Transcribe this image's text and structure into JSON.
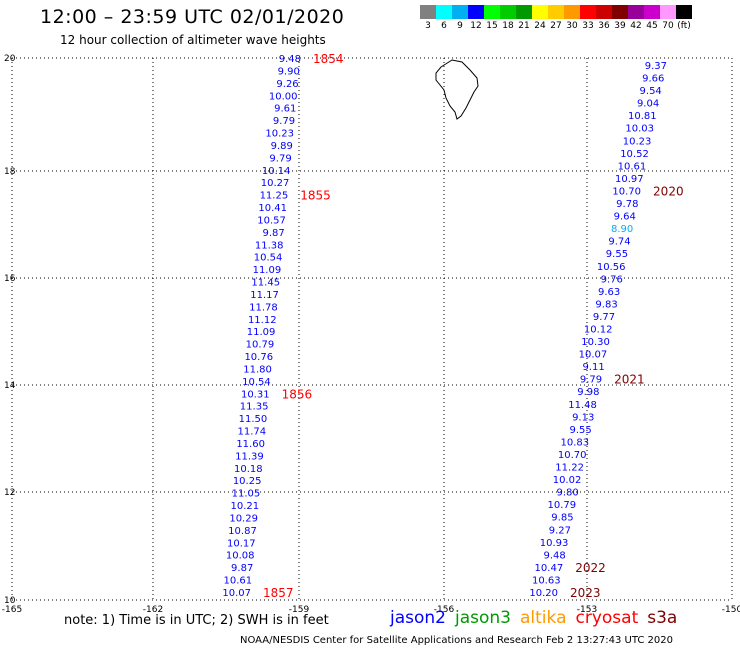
{
  "header": {
    "title": "12:00 – 23:59 UTC 02/01/2020",
    "subtitle": "12 hour collection of altimeter wave heights"
  },
  "legend": {
    "colors": [
      "#808080",
      "#00ffff",
      "#00b0f0",
      "#0000ff",
      "#00ff00",
      "#00cc00",
      "#009900",
      "#ffff00",
      "#ffcc00",
      "#ff9900",
      "#ff0000",
      "#cc0000",
      "#800000",
      "#990099",
      "#cc00cc",
      "#ff99ff",
      "#000000"
    ],
    "labels": [
      "3",
      "6",
      "9",
      "12",
      "15",
      "18",
      "21",
      "24",
      "27",
      "30",
      "33",
      "36",
      "39",
      "42",
      "45",
      "70",
      "(ft)"
    ]
  },
  "axes": {
    "lon_ticks": [
      "-165",
      "-162",
      "-159",
      "-156",
      "-153",
      "-150"
    ],
    "lat_ticks": [
      "10",
      "12",
      "14",
      "16",
      "18",
      "20"
    ]
  },
  "tracks": [
    {
      "values": [
        "9.48",
        "9.90",
        "9.26",
        "10.00",
        "9.61",
        "9.79",
        "10.23",
        "9.89",
        "9.79",
        "10.14",
        "10.27",
        "11.25",
        "10.41",
        "10.57",
        "9.87",
        "11.38",
        "10.54",
        "11.09",
        "11.45",
        "11.17",
        "11.78",
        "11.12",
        "11.09",
        "10.79",
        "10.76",
        "11.80",
        "10.54",
        "10.31",
        "11.35",
        "11.50",
        "11.74",
        "11.60",
        "11.39",
        "10.18",
        "10.25",
        "11.05",
        "10.21",
        "10.29",
        "10.87",
        "10.17",
        "10.08",
        "9.87",
        "10.61",
        "10.07"
      ],
      "times": [
        {
          "label": "1854",
          "after": 0
        },
        {
          "label": "1855",
          "after": 11
        },
        {
          "label": "1856",
          "after": 27
        },
        {
          "label": "1857",
          "after": 43
        }
      ]
    },
    {
      "values": [
        "9.37",
        "9.66",
        "9.54",
        "9.04",
        "10.81",
        "10.03",
        "10.23",
        "10.52",
        "10.61",
        "10.97",
        "10.70",
        "9.78",
        "9.64",
        "8.90",
        "9.74",
        "9.55",
        "10.56",
        "9.76",
        "9.63",
        "9.83",
        "9.77",
        "10.12",
        "10.30",
        "10.07",
        "9.11",
        "9.79",
        "9.98",
        "11.48",
        "9.13",
        "9.55",
        "10.83",
        "10.70",
        "11.22",
        "10.02",
        "9.80",
        "10.79",
        "9.85",
        "9.27",
        "10.93",
        "9.48",
        "10.47",
        "10.63",
        "10.20"
      ],
      "times": [
        {
          "label": "2020",
          "after": 10
        },
        {
          "label": "2021",
          "after": 25
        },
        {
          "label": "2022",
          "after": 40
        },
        {
          "label": "2023",
          "after": 42
        }
      ]
    }
  ],
  "footer": {
    "note": "note: 1) Time is in UTC; 2) SWH is in feet",
    "satellites": [
      {
        "name": "jason2",
        "color": "#0000ff"
      },
      {
        "name": "jason3",
        "color": "#009900"
      },
      {
        "name": "altika",
        "color": "#ff9900"
      },
      {
        "name": "cryosat",
        "color": "#ff0000"
      },
      {
        "name": "s3a",
        "color": "#800000"
      }
    ],
    "credit": "NOAA/NESDIS Center for Satellite Applications and Research    Feb  2 13:27:43 UTC 2020"
  }
}
